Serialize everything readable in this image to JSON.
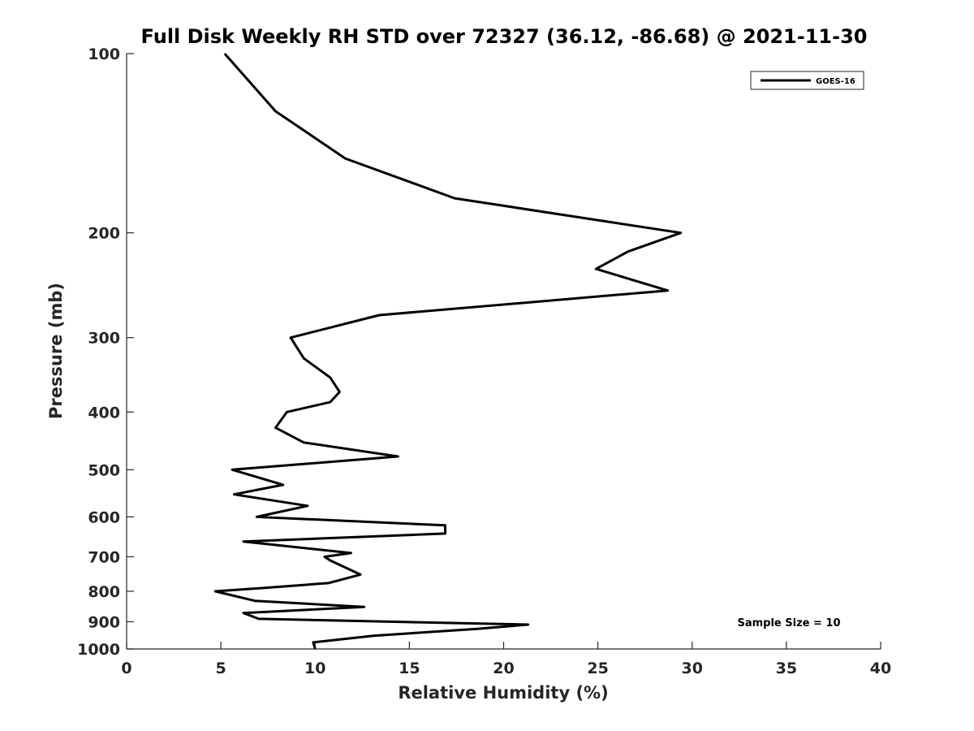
{
  "chart_data": {
    "type": "line",
    "title": "Full Disk Weekly RH STD over 72327 (36.12, -86.68) @ 2021-11-30",
    "xlabel": "Relative Humidity (%)",
    "ylabel": "Pressure (mb)",
    "xlim": [
      0,
      40
    ],
    "ylim": [
      100,
      1000
    ],
    "y_scale": "log",
    "y_reversed": true,
    "x_ticks": [
      "0",
      "5",
      "10",
      "15",
      "20",
      "25",
      "30",
      "35",
      "40"
    ],
    "y_ticks": [
      "100",
      "200",
      "300",
      "400",
      "500",
      "600",
      "700",
      "800",
      "900",
      "1000"
    ],
    "grid": false,
    "legend_position": "top-right",
    "series": [
      {
        "name": "GOES-16",
        "color": "#000000",
        "points": [
          [
            5.2,
            100
          ],
          [
            7.9,
            125
          ],
          [
            11.6,
            150
          ],
          [
            17.4,
            175
          ],
          [
            29.4,
            200
          ],
          [
            26.6,
            215
          ],
          [
            24.9,
            230
          ],
          [
            28.7,
            250
          ],
          [
            13.4,
            275
          ],
          [
            8.7,
            300
          ],
          [
            9.4,
            325
          ],
          [
            10.8,
            350
          ],
          [
            11.3,
            370
          ],
          [
            10.8,
            385
          ],
          [
            8.5,
            400
          ],
          [
            7.9,
            425
          ],
          [
            9.4,
            450
          ],
          [
            14.4,
            475
          ],
          [
            5.6,
            500
          ],
          [
            8.3,
            530
          ],
          [
            5.7,
            550
          ],
          [
            9.6,
            575
          ],
          [
            6.9,
            600
          ],
          [
            16.9,
            620
          ],
          [
            16.9,
            640
          ],
          [
            6.2,
            660
          ],
          [
            11.9,
            690
          ],
          [
            10.5,
            700
          ],
          [
            10.8,
            710
          ],
          [
            12.4,
            750
          ],
          [
            10.7,
            775
          ],
          [
            7.2,
            790
          ],
          [
            4.7,
            800
          ],
          [
            6.8,
            830
          ],
          [
            12.6,
            850
          ],
          [
            6.2,
            870
          ],
          [
            7.0,
            890
          ],
          [
            21.3,
            910
          ],
          [
            18.6,
            925
          ],
          [
            13.1,
            950
          ],
          [
            9.9,
            975
          ],
          [
            10.0,
            1000
          ]
        ]
      }
    ],
    "annotation": "Sample Size = 10"
  }
}
